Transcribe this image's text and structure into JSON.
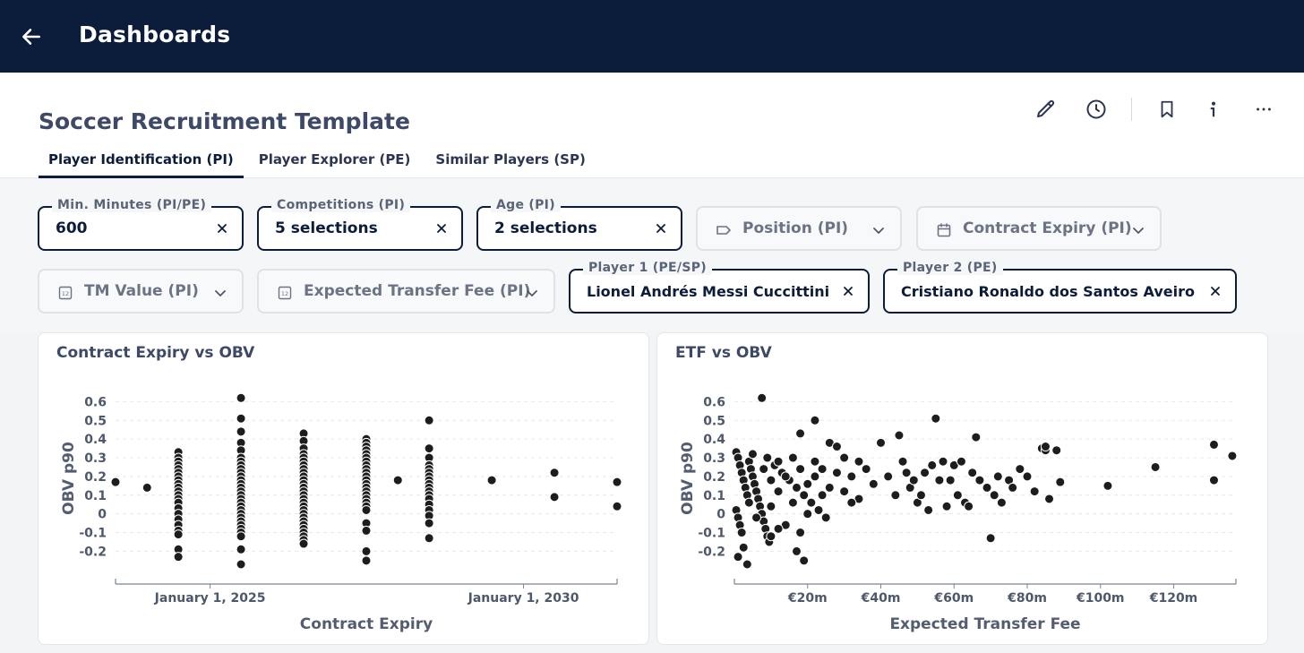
{
  "topbar": {
    "title": "Dashboards",
    "back_icon": "arrow-left-icon"
  },
  "header": {
    "title": "Soccer Recruitment Template",
    "tabs": [
      {
        "label": "Player Identification (PI)",
        "active": true
      },
      {
        "label": "Player Explorer (PE)",
        "active": false
      },
      {
        "label": "Similar Players (SP)",
        "active": false
      }
    ],
    "actions": [
      "pencil-icon",
      "clock-icon",
      "bookmark-icon",
      "info-icon",
      "more-icon"
    ]
  },
  "filters": [
    {
      "label": "Min. Minutes (PI/PE)",
      "value": "600",
      "state": "set"
    },
    {
      "label": "Competitions (PI)",
      "value": "5 selections",
      "state": "set"
    },
    {
      "label": "Age (PI)",
      "value": "2 selections",
      "state": "set"
    },
    {
      "label": "Position (PI)",
      "icon": "tag-icon",
      "state": "unset"
    },
    {
      "label": "Contract Expiry (PI)",
      "icon": "calendar-icon",
      "state": "unset"
    },
    {
      "label": "TM Value (PI)",
      "icon": "number-icon",
      "state": "unset"
    },
    {
      "label": "Expected Transfer Fee (PI)",
      "icon": "number-icon",
      "state": "unset"
    },
    {
      "label": "Player 1 (PE/SP)",
      "value": "Lionel Andrés Messi Cuccittini",
      "state": "set"
    },
    {
      "label": "Player 2 (PE)",
      "value": "Cristiano Ronaldo dos Santos Aveiro",
      "state": "set"
    }
  ],
  "chart_data": [
    {
      "type": "scatter",
      "title": "Contract Expiry vs OBV",
      "xlabel": "Contract Expiry",
      "ylabel": "OBV p90",
      "x_type": "date",
      "x_range": [
        "2023-06-30",
        "2031-06-30"
      ],
      "x_ticks": [
        "2025-01-01",
        "2030-01-01"
      ],
      "x_tick_labels": [
        "January 1, 2025",
        "January 1, 2030"
      ],
      "ylim": [
        -0.27,
        0.65
      ],
      "y_ticks": [
        0.6,
        0.5,
        0.4,
        0.3,
        0.2,
        0.1,
        0,
        -0.1,
        -0.2
      ],
      "y_tick_labels": [
        "0.6",
        "0.5",
        "0.4",
        "0.3",
        "0.2",
        "0.1",
        "0",
        "-0.1",
        "-0.2"
      ],
      "grid": "horizontal",
      "points": [
        {
          "x": "2023-06-30",
          "y": 0.17
        },
        {
          "x": "2023-12-31",
          "y": 0.14
        },
        {
          "x": "2024-06-30",
          "y": 0.33
        },
        {
          "x": "2024-06-30",
          "y": 0.3
        },
        {
          "x": "2024-06-30",
          "y": 0.28
        },
        {
          "x": "2024-06-30",
          "y": 0.26
        },
        {
          "x": "2024-06-30",
          "y": 0.24
        },
        {
          "x": "2024-06-30",
          "y": 0.22
        },
        {
          "x": "2024-06-30",
          "y": 0.2
        },
        {
          "x": "2024-06-30",
          "y": 0.18
        },
        {
          "x": "2024-06-30",
          "y": 0.16
        },
        {
          "x": "2024-06-30",
          "y": 0.14
        },
        {
          "x": "2024-06-30",
          "y": 0.12
        },
        {
          "x": "2024-06-30",
          "y": 0.1
        },
        {
          "x": "2024-06-30",
          "y": 0.08
        },
        {
          "x": "2024-06-30",
          "y": 0.06
        },
        {
          "x": "2024-06-30",
          "y": 0.03
        },
        {
          "x": "2024-06-30",
          "y": 0.0
        },
        {
          "x": "2024-06-30",
          "y": -0.03
        },
        {
          "x": "2024-06-30",
          "y": -0.06
        },
        {
          "x": "2024-06-30",
          "y": -0.09
        },
        {
          "x": "2024-06-30",
          "y": -0.11
        },
        {
          "x": "2024-06-30",
          "y": -0.19
        },
        {
          "x": "2024-06-30",
          "y": -0.23
        },
        {
          "x": "2025-06-30",
          "y": 0.62
        },
        {
          "x": "2025-06-30",
          "y": 0.51
        },
        {
          "x": "2025-06-30",
          "y": 0.44
        },
        {
          "x": "2025-06-30",
          "y": 0.38
        },
        {
          "x": "2025-06-30",
          "y": 0.34
        },
        {
          "x": "2025-06-30",
          "y": 0.3
        },
        {
          "x": "2025-06-30",
          "y": 0.28
        },
        {
          "x": "2025-06-30",
          "y": 0.26
        },
        {
          "x": "2025-06-30",
          "y": 0.24
        },
        {
          "x": "2025-06-30",
          "y": 0.22
        },
        {
          "x": "2025-06-30",
          "y": 0.2
        },
        {
          "x": "2025-06-30",
          "y": 0.18
        },
        {
          "x": "2025-06-30",
          "y": 0.16
        },
        {
          "x": "2025-06-30",
          "y": 0.14
        },
        {
          "x": "2025-06-30",
          "y": 0.12
        },
        {
          "x": "2025-06-30",
          "y": 0.1
        },
        {
          "x": "2025-06-30",
          "y": 0.08
        },
        {
          "x": "2025-06-30",
          "y": 0.06
        },
        {
          "x": "2025-06-30",
          "y": 0.04
        },
        {
          "x": "2025-06-30",
          "y": 0.02
        },
        {
          "x": "2025-06-30",
          "y": 0.0
        },
        {
          "x": "2025-06-30",
          "y": -0.02
        },
        {
          "x": "2025-06-30",
          "y": -0.04
        },
        {
          "x": "2025-06-30",
          "y": -0.06
        },
        {
          "x": "2025-06-30",
          "y": -0.08
        },
        {
          "x": "2025-06-30",
          "y": -0.1
        },
        {
          "x": "2025-06-30",
          "y": -0.12
        },
        {
          "x": "2025-06-30",
          "y": -0.19
        },
        {
          "x": "2025-06-30",
          "y": -0.27
        },
        {
          "x": "2026-06-30",
          "y": 0.43
        },
        {
          "x": "2026-06-30",
          "y": 0.39
        },
        {
          "x": "2026-06-30",
          "y": 0.35
        },
        {
          "x": "2026-06-30",
          "y": 0.32
        },
        {
          "x": "2026-06-30",
          "y": 0.3
        },
        {
          "x": "2026-06-30",
          "y": 0.28
        },
        {
          "x": "2026-06-30",
          "y": 0.26
        },
        {
          "x": "2026-06-30",
          "y": 0.24
        },
        {
          "x": "2026-06-30",
          "y": 0.22
        },
        {
          "x": "2026-06-30",
          "y": 0.2
        },
        {
          "x": "2026-06-30",
          "y": 0.18
        },
        {
          "x": "2026-06-30",
          "y": 0.16
        },
        {
          "x": "2026-06-30",
          "y": 0.14
        },
        {
          "x": "2026-06-30",
          "y": 0.12
        },
        {
          "x": "2026-06-30",
          "y": 0.1
        },
        {
          "x": "2026-06-30",
          "y": 0.08
        },
        {
          "x": "2026-06-30",
          "y": 0.06
        },
        {
          "x": "2026-06-30",
          "y": 0.04
        },
        {
          "x": "2026-06-30",
          "y": 0.02
        },
        {
          "x": "2026-06-30",
          "y": 0.0
        },
        {
          "x": "2026-06-30",
          "y": -0.02
        },
        {
          "x": "2026-06-30",
          "y": -0.04
        },
        {
          "x": "2026-06-30",
          "y": -0.06
        },
        {
          "x": "2026-06-30",
          "y": -0.08
        },
        {
          "x": "2026-06-30",
          "y": -0.1
        },
        {
          "x": "2026-06-30",
          "y": -0.12
        },
        {
          "x": "2026-06-30",
          "y": -0.14
        },
        {
          "x": "2026-06-30",
          "y": -0.16
        },
        {
          "x": "2027-06-30",
          "y": 0.4
        },
        {
          "x": "2027-06-30",
          "y": 0.38
        },
        {
          "x": "2027-06-30",
          "y": 0.36
        },
        {
          "x": "2027-06-30",
          "y": 0.34
        },
        {
          "x": "2027-06-30",
          "y": 0.32
        },
        {
          "x": "2027-06-30",
          "y": 0.3
        },
        {
          "x": "2027-06-30",
          "y": 0.28
        },
        {
          "x": "2027-06-30",
          "y": 0.26
        },
        {
          "x": "2027-06-30",
          "y": 0.24
        },
        {
          "x": "2027-06-30",
          "y": 0.22
        },
        {
          "x": "2027-06-30",
          "y": 0.2
        },
        {
          "x": "2027-06-30",
          "y": 0.18
        },
        {
          "x": "2027-06-30",
          "y": 0.16
        },
        {
          "x": "2027-06-30",
          "y": 0.14
        },
        {
          "x": "2027-06-30",
          "y": 0.12
        },
        {
          "x": "2027-06-30",
          "y": 0.1
        },
        {
          "x": "2027-06-30",
          "y": 0.08
        },
        {
          "x": "2027-06-30",
          "y": 0.06
        },
        {
          "x": "2027-06-30",
          "y": 0.04
        },
        {
          "x": "2027-06-30",
          "y": 0.02
        },
        {
          "x": "2027-06-30",
          "y": -0.05
        },
        {
          "x": "2027-06-30",
          "y": -0.09
        },
        {
          "x": "2027-06-30",
          "y": -0.2
        },
        {
          "x": "2027-06-30",
          "y": -0.25
        },
        {
          "x": "2027-12-31",
          "y": 0.18
        },
        {
          "x": "2028-06-30",
          "y": 0.5
        },
        {
          "x": "2028-06-30",
          "y": 0.35
        },
        {
          "x": "2028-06-30",
          "y": 0.3
        },
        {
          "x": "2028-06-30",
          "y": 0.26
        },
        {
          "x": "2028-06-30",
          "y": 0.24
        },
        {
          "x": "2028-06-30",
          "y": 0.22
        },
        {
          "x": "2028-06-30",
          "y": 0.2
        },
        {
          "x": "2028-06-30",
          "y": 0.18
        },
        {
          "x": "2028-06-30",
          "y": 0.16
        },
        {
          "x": "2028-06-30",
          "y": 0.14
        },
        {
          "x": "2028-06-30",
          "y": 0.12
        },
        {
          "x": "2028-06-30",
          "y": 0.1
        },
        {
          "x": "2028-06-30",
          "y": 0.08
        },
        {
          "x": "2028-06-30",
          "y": 0.05
        },
        {
          "x": "2028-06-30",
          "y": 0.02
        },
        {
          "x": "2028-06-30",
          "y": -0.01
        },
        {
          "x": "2028-06-30",
          "y": -0.05
        },
        {
          "x": "2028-06-30",
          "y": -0.13
        },
        {
          "x": "2029-06-30",
          "y": 0.18
        },
        {
          "x": "2030-06-30",
          "y": 0.22
        },
        {
          "x": "2030-06-30",
          "y": 0.09
        },
        {
          "x": "2031-06-30",
          "y": 0.17
        },
        {
          "x": "2031-06-30",
          "y": 0.04
        }
      ]
    },
    {
      "type": "scatter",
      "title": "ETF vs OBV",
      "xlabel": "Expected Transfer Fee",
      "ylabel": "OBV p90",
      "x_unit": "€m",
      "xlim": [
        0,
        137
      ],
      "x_ticks": [
        20,
        40,
        60,
        80,
        100,
        120
      ],
      "x_tick_labels": [
        "€20m",
        "€40m",
        "€60m",
        "€80m",
        "€100m",
        "€120m"
      ],
      "ylim": [
        -0.27,
        0.65
      ],
      "y_ticks": [
        0.6,
        0.5,
        0.4,
        0.3,
        0.2,
        0.1,
        0,
        -0.1,
        -0.2
      ],
      "y_tick_labels": [
        "0.6",
        "0.5",
        "0.4",
        "0.3",
        "0.2",
        "0.1",
        "0",
        "-0.1",
        "-0.2"
      ],
      "grid": "horizontal",
      "points": [
        [
          0.5,
          0.33
        ],
        [
          1,
          0.3
        ],
        [
          1.5,
          0.26
        ],
        [
          2,
          0.22
        ],
        [
          2.5,
          0.18
        ],
        [
          3,
          0.14
        ],
        [
          3.5,
          0.1
        ],
        [
          4,
          0.06
        ],
        [
          0.5,
          0.02
        ],
        [
          1,
          -0.02
        ],
        [
          1.5,
          -0.06
        ],
        [
          2,
          -0.1
        ],
        [
          2.5,
          -0.18
        ],
        [
          1,
          -0.23
        ],
        [
          3.5,
          -0.27
        ],
        [
          4,
          0.28
        ],
        [
          4.5,
          0.24
        ],
        [
          5,
          0.2
        ],
        [
          5.5,
          0.16
        ],
        [
          6,
          0.12
        ],
        [
          6.5,
          0.08
        ],
        [
          7,
          0.04
        ],
        [
          7.5,
          0.0
        ],
        [
          8,
          -0.04
        ],
        [
          8.5,
          -0.08
        ],
        [
          9,
          -0.12
        ],
        [
          9.5,
          -0.15
        ],
        [
          7.5,
          0.62
        ],
        [
          5,
          0.32
        ],
        [
          9,
          0.3
        ],
        [
          11,
          0.26
        ],
        [
          13,
          0.22
        ],
        [
          15,
          0.18
        ],
        [
          17,
          0.14
        ],
        [
          19,
          0.1
        ],
        [
          21,
          0.06
        ],
        [
          23,
          0.02
        ],
        [
          25,
          -0.02
        ],
        [
          6,
          -0.02
        ],
        [
          10,
          0.18
        ],
        [
          12,
          0.12
        ],
        [
          14,
          0.2
        ],
        [
          16,
          0.06
        ],
        [
          18,
          0.24
        ],
        [
          20,
          0.16
        ],
        [
          22,
          0.28
        ],
        [
          24,
          0.1
        ],
        [
          26,
          0.14
        ],
        [
          28,
          0.22
        ],
        [
          30,
          0.3
        ],
        [
          32,
          0.2
        ],
        [
          34,
          0.08
        ],
        [
          36,
          0.24
        ],
        [
          38,
          0.16
        ],
        [
          8,
          0.24
        ],
        [
          10,
          0.04
        ],
        [
          12,
          0.28
        ],
        [
          14,
          -0.06
        ],
        [
          16,
          0.3
        ],
        [
          18,
          -0.1
        ],
        [
          20,
          0.0
        ],
        [
          22,
          0.2
        ],
        [
          24,
          0.24
        ],
        [
          26,
          0.38
        ],
        [
          28,
          0.36
        ],
        [
          30,
          0.12
        ],
        [
          32,
          0.06
        ],
        [
          34,
          0.28
        ],
        [
          10,
          -0.12
        ],
        [
          12,
          -0.08
        ],
        [
          17,
          -0.2
        ],
        [
          19,
          -0.25
        ],
        [
          22,
          0.5
        ],
        [
          18,
          0.43
        ],
        [
          40,
          0.38
        ],
        [
          42,
          0.2
        ],
        [
          44,
          0.1
        ],
        [
          46,
          0.28
        ],
        [
          48,
          0.14
        ],
        [
          50,
          0.06
        ],
        [
          52,
          0.22
        ],
        [
          54,
          0.26
        ],
        [
          45,
          0.42
        ],
        [
          47,
          0.22
        ],
        [
          49,
          0.18
        ],
        [
          51,
          0.1
        ],
        [
          53,
          0.02
        ],
        [
          55,
          0.51
        ],
        [
          57,
          0.28
        ],
        [
          59,
          0.18
        ],
        [
          61,
          0.1
        ],
        [
          63,
          0.06
        ],
        [
          65,
          0.22
        ],
        [
          67,
          0.18
        ],
        [
          69,
          0.14
        ],
        [
          71,
          0.1
        ],
        [
          73,
          0.06
        ],
        [
          75,
          0.18
        ],
        [
          56,
          0.18
        ],
        [
          58,
          0.04
        ],
        [
          60,
          0.26
        ],
        [
          62,
          0.28
        ],
        [
          64,
          0.04
        ],
        [
          66,
          0.41
        ],
        [
          70,
          -0.13
        ],
        [
          72,
          0.2
        ],
        [
          76,
          0.14
        ],
        [
          78,
          0.24
        ],
        [
          80,
          0.2
        ],
        [
          82,
          0.12
        ],
        [
          84,
          0.35
        ],
        [
          85,
          0.34
        ],
        [
          86,
          0.08
        ],
        [
          88,
          0.34
        ],
        [
          89,
          0.17
        ],
        [
          85,
          0.36
        ],
        [
          102,
          0.15
        ],
        [
          115,
          0.25
        ],
        [
          131,
          0.37
        ],
        [
          131,
          0.18
        ],
        [
          136,
          0.31
        ]
      ]
    }
  ]
}
